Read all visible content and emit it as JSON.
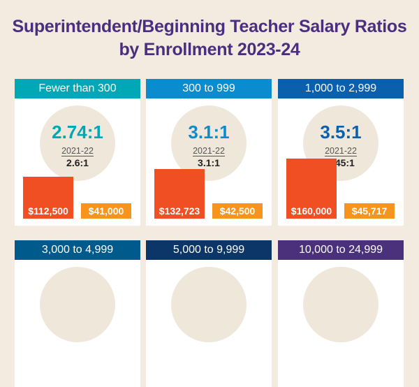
{
  "title_line1": "Superintendent/Beginning Teacher Salary Ratios",
  "title_line2": "by Enrollment 2023-24",
  "colors": {
    "background": "#f3ebdf",
    "superintendent_bar": "#f04e23",
    "teacher_bar": "#f7941d",
    "title": "#4b2e7f"
  },
  "chart_data": {
    "type": "bar",
    "title": "Superintendent/Beginning Teacher Salary Ratios by Enrollment 2023-24",
    "categories": [
      "Fewer than 300",
      "300 to 999",
      "1,000 to 2,999",
      "3,000 to 4,999",
      "5,000 to 9,999",
      "10,000 to 24,999"
    ],
    "series": [
      {
        "name": "Superintendent salary",
        "values": [
          112500,
          132723,
          160000,
          null,
          null,
          null
        ]
      },
      {
        "name": "Beginning teacher salary",
        "values": [
          41000,
          42500,
          45717,
          null,
          null,
          null
        ]
      }
    ]
  },
  "panels": [
    {
      "label": "Fewer than 300",
      "color": "#00a8b5",
      "ratio": "2.74:1",
      "prev_label": "2021-22",
      "prev": "2.6:1",
      "supt": "$112,500",
      "teach": "$41,000",
      "supt_val": 112500
    },
    {
      "label": "300 to 999",
      "color": "#0b8ccf",
      "ratio": "3.1:1",
      "prev_label": "2021-22",
      "prev": "3.1:1",
      "supt": "$132,723",
      "teach": "$42,500",
      "supt_val": 132723
    },
    {
      "label": "1,000 to 2,999",
      "color": "#0a60ac",
      "ratio": "3.5:1",
      "prev_label": "2021-22",
      "prev": "3.45:1",
      "supt": "$160,000",
      "teach": "$45,717",
      "supt_val": 160000
    },
    {
      "label": "3,000 to 4,999",
      "color": "#005b8c"
    },
    {
      "label": "5,000 to 9,999",
      "color": "#0c3667"
    },
    {
      "label": "10,000 to 24,999",
      "color": "#4b307c"
    }
  ]
}
